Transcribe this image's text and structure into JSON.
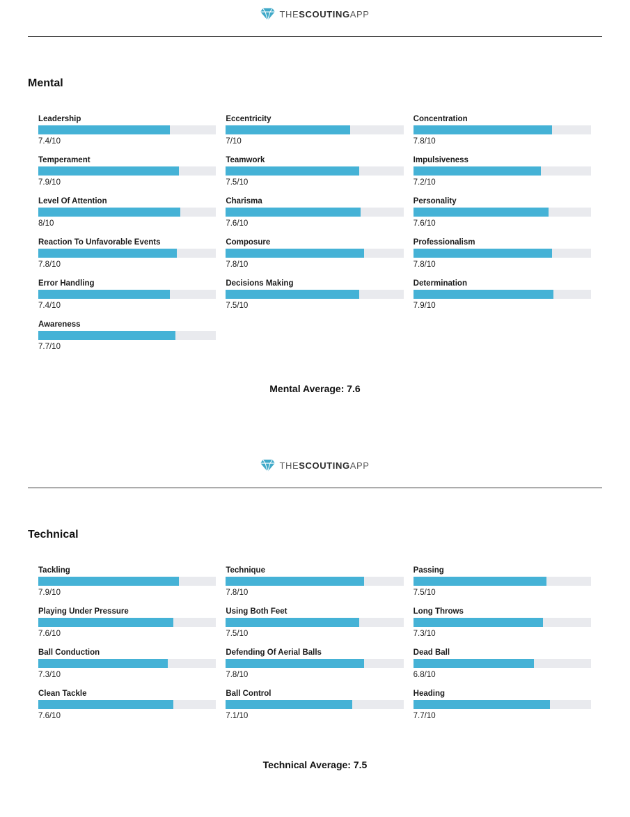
{
  "brand": {
    "the": "THE",
    "scouting": "SCOUTING",
    "app": "APP"
  },
  "colors": {
    "bar": "#45b2d6",
    "track": "#e9eaee",
    "brand_icon": "#3fa9c8"
  },
  "chart_data": [
    {
      "type": "bar",
      "orientation": "horizontal",
      "title": "Mental",
      "xlim": [
        0,
        10
      ],
      "categories": [
        "Leadership",
        "Eccentricity",
        "Concentration",
        "Temperament",
        "Teamwork",
        "Impulsiveness",
        "Level Of Attention",
        "Charisma",
        "Personality",
        "Reaction To Unfavorable Events",
        "Composure",
        "Professionalism",
        "Error Handling",
        "Decisions Making",
        "Determination",
        "Awareness"
      ],
      "values": [
        7.4,
        7,
        7.8,
        7.9,
        7.5,
        7.2,
        8,
        7.6,
        7.6,
        7.8,
        7.8,
        7.8,
        7.4,
        7.5,
        7.9,
        7.7
      ],
      "value_labels": [
        "7.4/10",
        "7/10",
        "7.8/10",
        "7.9/10",
        "7.5/10",
        "7.2/10",
        "8/10",
        "7.6/10",
        "7.6/10",
        "7.8/10",
        "7.8/10",
        "7.8/10",
        "7.4/10",
        "7.5/10",
        "7.9/10",
        "7.7/10"
      ],
      "average": 7.6,
      "average_label": "Mental Average: 7.6"
    },
    {
      "type": "bar",
      "orientation": "horizontal",
      "title": "Technical",
      "xlim": [
        0,
        10
      ],
      "categories": [
        "Tackling",
        "Technique",
        "Passing",
        "Playing Under Pressure",
        "Using Both Feet",
        "Long Throws",
        "Ball Conduction",
        "Defending Of Aerial Balls",
        "Dead Ball",
        "Clean Tackle",
        "Ball Control",
        "Heading"
      ],
      "values": [
        7.9,
        7.8,
        7.5,
        7.6,
        7.5,
        7.3,
        7.3,
        7.8,
        6.8,
        7.6,
        7.1,
        7.7
      ],
      "value_labels": [
        "7.9/10",
        "7.8/10",
        "7.5/10",
        "7.6/10",
        "7.5/10",
        "7.3/10",
        "7.3/10",
        "7.8/10",
        "6.8/10",
        "7.6/10",
        "7.1/10",
        "7.7/10"
      ],
      "average": 7.5,
      "average_label": "Technical Average: 7.5"
    }
  ]
}
